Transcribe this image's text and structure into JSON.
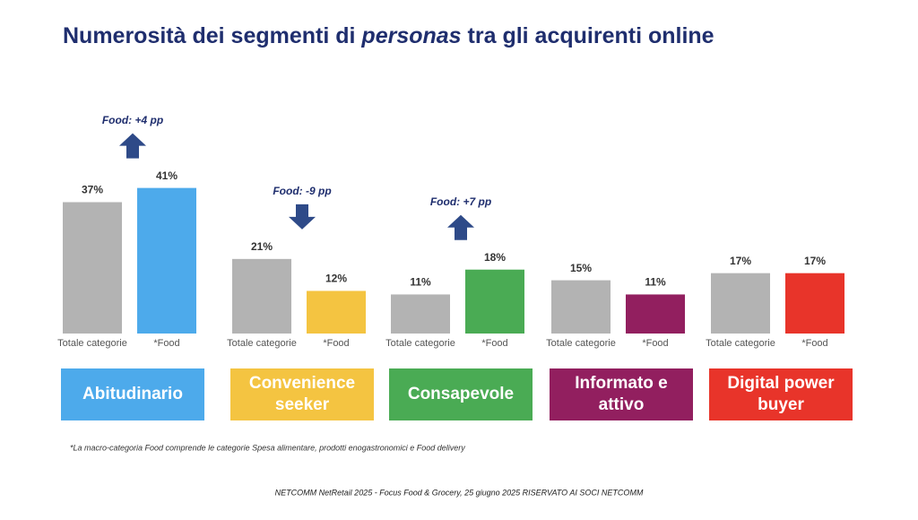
{
  "chart_data": {
    "type": "bar",
    "title": [
      "Numerosità dei segmenti di ",
      "personas",
      " tra gli acquirenti online"
    ],
    "categories": [
      "Abitudinario",
      "Convenience seeker",
      "Consapevole",
      "Informato e attivo",
      "Digital power buyer"
    ],
    "series": [
      {
        "name": "Totale categorie",
        "color": "#b3b3b3",
        "values": [
          37,
          21,
          11,
          15,
          17
        ],
        "value_labels": [
          "37%",
          "21%",
          "11%",
          "15%",
          "17%"
        ]
      },
      {
        "name": "*Food",
        "colors": [
          "#4daaeb",
          "#f4c441",
          "#4aab54",
          "#921f5f",
          "#e8342a"
        ],
        "values": [
          41,
          12,
          18,
          11,
          17
        ],
        "value_labels": [
          "41%",
          "12%",
          "18%",
          "11%",
          "17%"
        ]
      }
    ],
    "annotations": [
      {
        "group": 0,
        "text": "Food: +4 pp",
        "arrow": "up"
      },
      {
        "group": 1,
        "text": "Food: -9 pp",
        "arrow": "down"
      },
      {
        "group": 2,
        "text": "Food: +7 pp",
        "arrow": "up"
      }
    ],
    "footnote": "*La macro-categoria Food comprende le categorie Spesa alimentare, prodotti enogastronomici e Food delivery",
    "footer": "NETCOMM NetRetail 2025 - Focus Food & Grocery, 25 giugno 2025 RISERVATO AI SOCI NETCOMM"
  }
}
